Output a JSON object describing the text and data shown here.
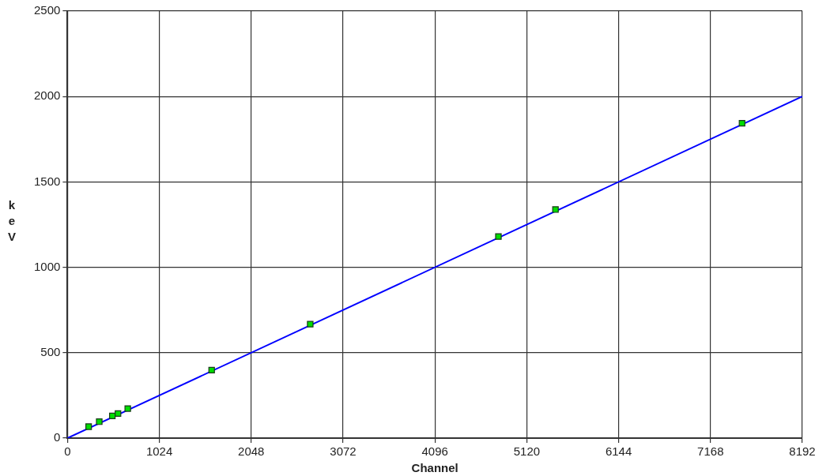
{
  "chart_data": {
    "type": "scatter",
    "xlabel": "Channel",
    "ylabel": "keV",
    "xlim": [
      0,
      8192
    ],
    "xticks": [
      0,
      1024,
      2048,
      3072,
      4096,
      5120,
      6144,
      7168,
      8192
    ],
    "ylim": [
      0,
      2500
    ],
    "yticks": [
      0,
      500,
      1000,
      1500,
      2000,
      2500
    ],
    "grid": true,
    "legend": false,
    "marker": "square",
    "series": [
      {
        "color": "#00dd00",
        "x": [
          236,
          354,
          500,
          563,
          672,
          1607,
          2706,
          4804,
          5440,
          7520
        ],
        "values": [
          67,
          96,
          130,
          144,
          173,
          398,
          667,
          1180,
          1338,
          1843
        ]
      },
      {
        "type": "line",
        "color": "#0000ff",
        "marker": "none",
        "line_style": "solid",
        "x": [
          0,
          8192
        ],
        "values": [
          0,
          2000
        ]
      }
    ]
  }
}
